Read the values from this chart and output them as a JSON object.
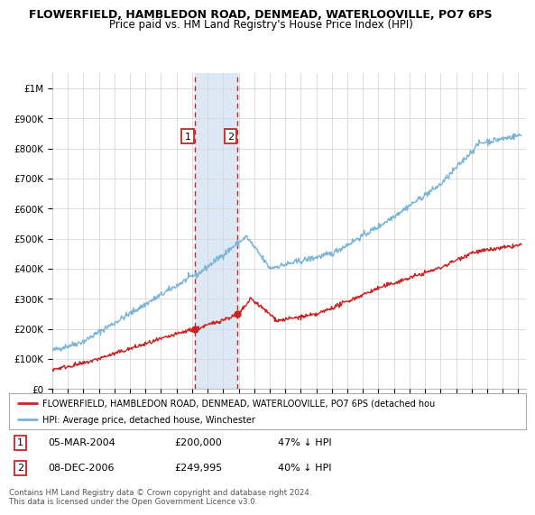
{
  "title1": "FLOWERFIELD, HAMBLEDON ROAD, DENMEAD, WATERLOOVILLE, PO7 6PS",
  "title2": "Price paid vs. HM Land Registry's House Price Index (HPI)",
  "ylim": [
    0,
    1050000
  ],
  "yticks": [
    0,
    100000,
    200000,
    300000,
    400000,
    500000,
    600000,
    700000,
    800000,
    900000,
    1000000
  ],
  "ytick_labels": [
    "£0",
    "£100K",
    "£200K",
    "£300K",
    "£400K",
    "£500K",
    "£600K",
    "£700K",
    "£800K",
    "£900K",
    "£1M"
  ],
  "hpi_color": "#7ab4d8",
  "price_color": "#cc2222",
  "legend_label_red": "FLOWERFIELD, HAMBLEDON ROAD, DENMEAD, WATERLOOVILLE, PO7 6PS (detached hou",
  "legend_label_blue": "HPI: Average price, detached house, Winchester",
  "annotation1_label": "1",
  "annotation1_date": "05-MAR-2004",
  "annotation1_price": "£200,000",
  "annotation1_hpi": "47% ↓ HPI",
  "annotation2_label": "2",
  "annotation2_date": "08-DEC-2006",
  "annotation2_price": "£249,995",
  "annotation2_hpi": "40% ↓ HPI",
  "footer": "Contains HM Land Registry data © Crown copyright and database right 2024.\nThis data is licensed under the Open Government Licence v3.0.",
  "title1_fontsize": 9,
  "title2_fontsize": 8.5,
  "background_color": "#ffffff",
  "grid_color": "#d8d8d8",
  "span_color": "#dce8f5",
  "dashed_color": "#cc2222",
  "p1_date": 2004.17,
  "p1_price": 200000,
  "p2_date": 2006.92,
  "p2_price": 249995,
  "xmin": 1995,
  "xmax": 2025.5
}
